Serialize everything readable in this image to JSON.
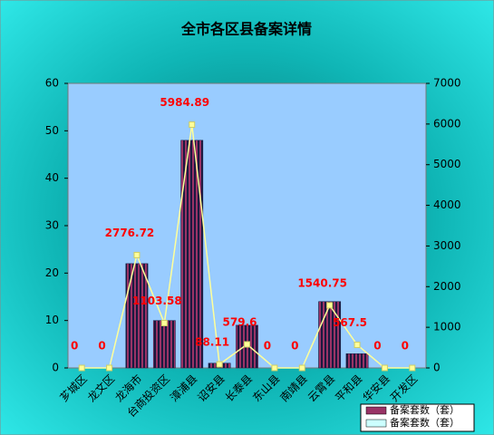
{
  "chart_data": {
    "type": "bar-line",
    "title": "全市各区县备案详情",
    "categories": [
      "芗城区",
      "龙文区",
      "龙海市",
      "台商投资区",
      "漳浦县",
      "诏安县",
      "长泰县",
      "东山县",
      "南靖县",
      "云霄县",
      "平和县",
      "华安县",
      "开发区"
    ],
    "series": [
      {
        "name": "备案套数（套）",
        "type": "bar",
        "color": "#993366",
        "values": [
          0,
          0,
          22,
          10,
          48,
          1,
          9,
          0,
          0,
          14,
          3,
          0,
          0
        ]
      },
      {
        "name": "备案套数（套）",
        "type": "line",
        "axis": "y2",
        "color": "#ffff99",
        "legend_color": "#ccffff",
        "values": [
          0,
          0,
          2776.72,
          1103.58,
          5984.89,
          88.11,
          579.6,
          0,
          0,
          1540.75,
          567.5,
          0,
          0
        ]
      }
    ],
    "ylim": [
      0,
      60
    ],
    "yticks": [
      0,
      10,
      20,
      30,
      40,
      50,
      60
    ],
    "y2lim": [
      0,
      7000
    ],
    "y2ticks": [
      0,
      1000,
      2000,
      3000,
      4000,
      5000,
      6000,
      7000
    ],
    "grid": false
  }
}
